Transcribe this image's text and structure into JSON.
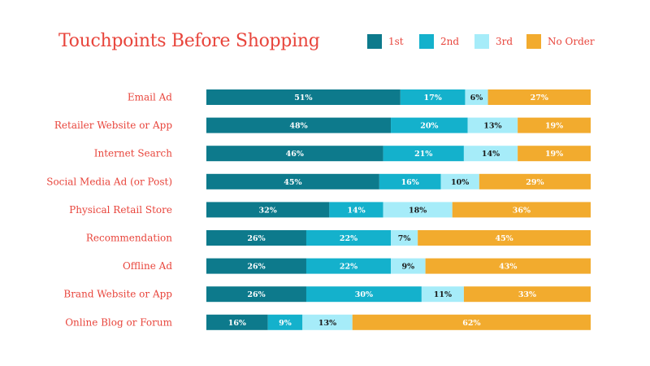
{
  "chart_data": {
    "type": "bar",
    "orientation": "horizontal",
    "stacked": true,
    "title": "Touchpoints Before Shopping",
    "xlabel": "",
    "ylabel": "",
    "xlim": [
      0,
      100
    ],
    "grid": false,
    "legend_position": "top-right",
    "categories": [
      "Email Ad",
      "Retailer Website or App",
      "Internet Search",
      "Social Media Ad (or Post)",
      "Physical Retail Store",
      "Recommendation",
      "Offline Ad",
      "Brand Website or App",
      "Online Blog or Forum"
    ],
    "series": [
      {
        "name": "1st",
        "values": [
          51,
          48,
          46,
          45,
          32,
          26,
          26,
          26,
          16
        ]
      },
      {
        "name": "2nd",
        "values": [
          17,
          20,
          21,
          16,
          14,
          22,
          22,
          30,
          9
        ]
      },
      {
        "name": "3rd",
        "values": [
          6,
          13,
          14,
          10,
          18,
          7,
          9,
          11,
          13
        ]
      },
      {
        "name": "No Order",
        "values": [
          27,
          19,
          19,
          29,
          36,
          45,
          43,
          33,
          62
        ]
      }
    ]
  },
  "colors": {
    "title": "#e8453c",
    "category_label": "#e8453c",
    "legend_label": "#e8453c",
    "series": [
      "#0d7a8c",
      "#14b1cc",
      "#a6ecf9",
      "#f2ab2e"
    ],
    "segment_text_dark_bg": "#ffffff",
    "segment_text_light_bg": "#1a1a1a"
  }
}
